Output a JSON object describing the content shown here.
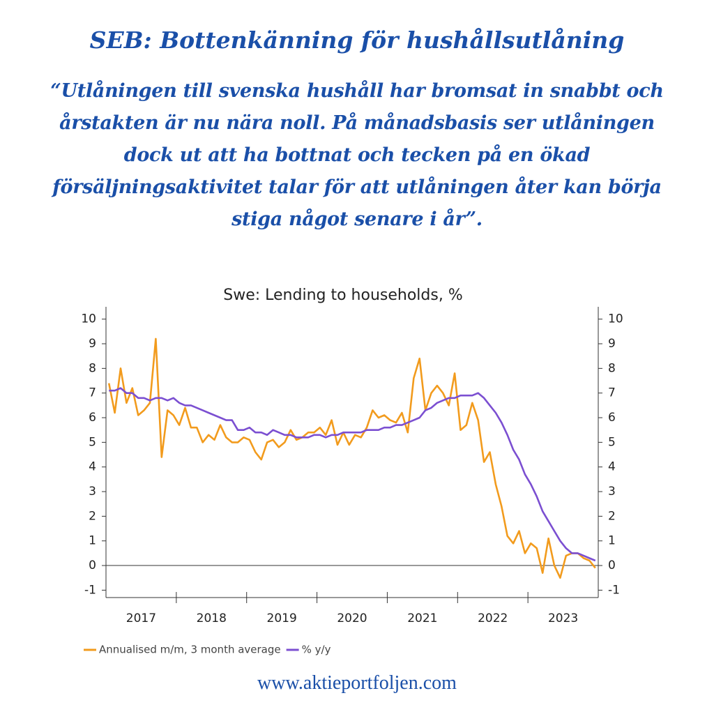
{
  "header": {
    "title": "SEB: Bottenkänning för hushållsutlåning",
    "quote_lines": [
      "“Utlåningen till svenska hushåll har bromsat in snabbt och",
      "årstakten är nu nära noll. På månadsbasis ser utlåningen",
      "dock ut att ha bottnat och tecken på en ökad",
      "försäljningsaktivitet talar för att utlåningen åter kan börja",
      "stiga något senare i år”."
    ]
  },
  "chart_data": {
    "type": "line",
    "title": "Swe: Lending to households, %",
    "categories": [
      null,
      null,
      null,
      null,
      null,
      null,
      "2017",
      null,
      null,
      null,
      null,
      null,
      null,
      null,
      null,
      null,
      null,
      null,
      "2018",
      null,
      null,
      null,
      null,
      null,
      null,
      null,
      null,
      null,
      null,
      null,
      "2019",
      null,
      null,
      null,
      null,
      null,
      null,
      null,
      null,
      null,
      null,
      null,
      "2020",
      null,
      null,
      null,
      null,
      null,
      null,
      null,
      null,
      null,
      null,
      null,
      "2021",
      null,
      null,
      null,
      null,
      null,
      null,
      null,
      null,
      null,
      null,
      null,
      "2022",
      null,
      null,
      null,
      null,
      null,
      null,
      null,
      null,
      null,
      null,
      null,
      "2023",
      null,
      null,
      null,
      null,
      null
    ],
    "series": [
      {
        "name": "Annualised m/m, 3 month average",
        "color": "#f29b1d",
        "values": [
          7.4,
          6.2,
          8.0,
          6.6,
          7.2,
          6.1,
          6.3,
          6.6,
          9.2,
          4.4,
          6.3,
          6.1,
          5.7,
          6.4,
          5.6,
          5.6,
          5.0,
          5.3,
          5.1,
          5.7,
          5.2,
          5.0,
          5.0,
          5.2,
          5.1,
          4.6,
          4.3,
          5.0,
          5.1,
          4.8,
          5.0,
          5.5,
          5.1,
          5.2,
          5.4,
          5.4,
          5.6,
          5.3,
          5.9,
          4.9,
          5.4,
          4.9,
          5.3,
          5.2,
          5.6,
          6.3,
          6.0,
          6.1,
          5.9,
          5.8,
          6.2,
          5.4,
          7.6,
          8.4,
          6.3,
          7.0,
          7.3,
          7.0,
          6.5,
          7.8,
          5.5,
          5.7,
          6.6,
          5.9,
          4.2,
          4.6,
          3.3,
          2.4,
          1.2,
          0.9,
          1.4,
          0.5,
          0.9,
          0.7,
          -0.3,
          1.1,
          0.0,
          -0.5,
          0.4,
          0.5,
          0.5,
          0.3,
          0.2,
          -0.1
        ]
      },
      {
        "name": "% y/y",
        "color": "#7b4fd1",
        "values": [
          7.1,
          7.1,
          7.2,
          7.0,
          7.0,
          6.8,
          6.8,
          6.7,
          6.8,
          6.8,
          6.7,
          6.8,
          6.6,
          6.5,
          6.5,
          6.4,
          6.3,
          6.2,
          6.1,
          6.0,
          5.9,
          5.9,
          5.5,
          5.5,
          5.6,
          5.4,
          5.4,
          5.3,
          5.5,
          5.4,
          5.3,
          5.3,
          5.2,
          5.2,
          5.2,
          5.3,
          5.3,
          5.2,
          5.3,
          5.3,
          5.4,
          5.4,
          5.4,
          5.4,
          5.5,
          5.5,
          5.5,
          5.6,
          5.6,
          5.7,
          5.7,
          5.8,
          5.9,
          6.0,
          6.3,
          6.4,
          6.6,
          6.7,
          6.8,
          6.8,
          6.9,
          6.9,
          6.9,
          7.0,
          6.8,
          6.5,
          6.2,
          5.8,
          5.3,
          4.7,
          4.3,
          3.7,
          3.3,
          2.8,
          2.2,
          1.8,
          1.4,
          1.0,
          0.7,
          0.5,
          0.5,
          0.4,
          0.3,
          0.2
        ]
      }
    ],
    "ylim": [
      -1.3,
      10.5
    ],
    "yticks": [
      -1,
      0,
      1,
      2,
      3,
      4,
      5,
      6,
      7,
      8,
      9,
      10
    ],
    "y2lim": [
      -1.3,
      10.5
    ],
    "y2ticks": [
      -1,
      0,
      1,
      2,
      3,
      4,
      5,
      6,
      7,
      8,
      9,
      10
    ],
    "grid": false,
    "zero_line": true,
    "legend": "bottom-left"
  },
  "footer": "www.aktieportfoljen.com"
}
